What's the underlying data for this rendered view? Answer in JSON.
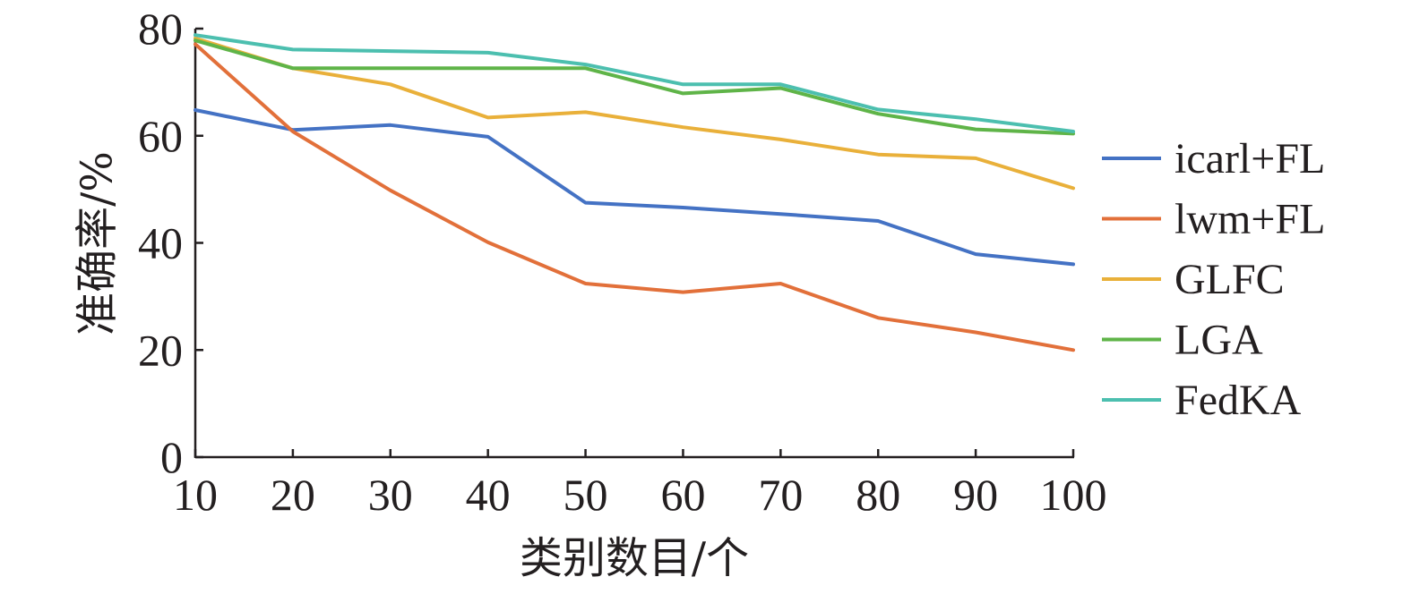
{
  "chart_data": {
    "type": "line",
    "xlabel": "类别数目/个",
    "ylabel": "准确率/%",
    "xlim": [
      10,
      100
    ],
    "ylim": [
      0,
      80
    ],
    "x_ticks": [
      "10",
      "20",
      "30",
      "40",
      "50",
      "60",
      "70",
      "80",
      "90",
      "100"
    ],
    "y_ticks": [
      "0",
      "20",
      "40",
      "60",
      "80"
    ],
    "x": [
      10,
      20,
      30,
      40,
      50,
      60,
      70,
      80,
      90,
      100
    ],
    "grid": false,
    "legend_position": "right",
    "series": [
      {
        "name": "icarl+FL",
        "color": "#4472c4",
        "values": [
          64.8,
          61.1,
          62.0,
          59.8,
          47.5,
          46.6,
          45.4,
          44.1,
          37.9,
          36.0
        ]
      },
      {
        "name": "lwm+FL",
        "color": "#e2703a",
        "values": [
          77.1,
          60.8,
          49.8,
          40.1,
          32.4,
          30.8,
          32.4,
          26.0,
          23.3,
          20.0
        ]
      },
      {
        "name": "GLFC",
        "color": "#e9b03a",
        "values": [
          78.2,
          72.6,
          69.6,
          63.4,
          64.4,
          61.6,
          59.3,
          56.5,
          55.8,
          50.2
        ]
      },
      {
        "name": "LGA",
        "color": "#5fb448",
        "values": [
          77.8,
          72.6,
          72.6,
          72.6,
          72.6,
          67.9,
          68.9,
          64.1,
          61.2,
          60.4
        ]
      },
      {
        "name": "FedKA",
        "color": "#4cbfaf",
        "values": [
          78.8,
          76.1,
          75.8,
          75.5,
          73.3,
          69.6,
          69.6,
          64.9,
          63.1,
          60.8
        ]
      }
    ]
  }
}
